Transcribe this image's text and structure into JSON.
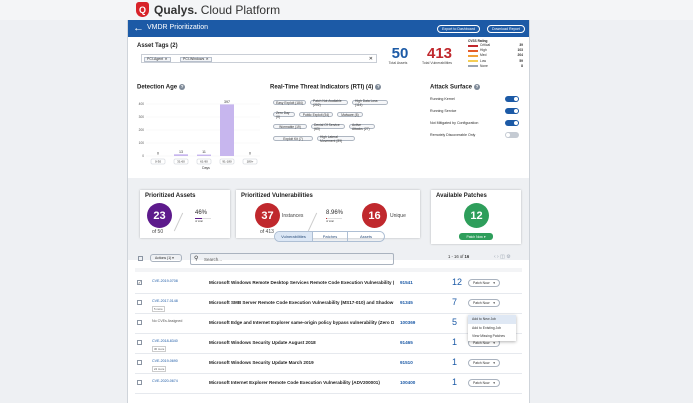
{
  "app": {
    "brand_bold": "Qualys.",
    "brand_rest": "Cloud Platform"
  },
  "header": {
    "title": "VMDR Prioritization",
    "export_label": "Export to Dashboard",
    "download_label": "Download Report"
  },
  "asset_tags": {
    "title": "Asset Tags (2)",
    "tags": [
      "PCI-Agent",
      "PCI-Windows"
    ]
  },
  "summary": {
    "total_assets": "50",
    "total_assets_label": "Total Assets",
    "total_vulns": "413",
    "total_vulns_label": "Total Vulnerabilities",
    "cvss_title": "CVSS Rating",
    "cvss": [
      {
        "label": "Critical",
        "value": "39",
        "color": "#c0282d"
      },
      {
        "label": "High",
        "value": "103",
        "color": "#e45b2b"
      },
      {
        "label": "Med",
        "value": "204",
        "color": "#f0a23a"
      },
      {
        "label": "Low",
        "value": "59",
        "color": "#f4cd55"
      },
      {
        "label": "None",
        "value": "8",
        "color": "#9aa4b1"
      }
    ]
  },
  "detection_age": {
    "title": "Detection Age",
    "xlabel": "Days"
  },
  "chart_data": {
    "type": "bar",
    "categories": [
      "0-30",
      "31-60",
      "61-90",
      "91-180",
      "180+"
    ],
    "values": [
      0,
      13,
      11,
      397,
      0
    ],
    "ylim": [
      0,
      400
    ],
    "yticks": [
      "0",
      "100",
      "200",
      "300",
      "400"
    ],
    "xlabel": "Days",
    "title": "Detection Age"
  },
  "rti": {
    "title": "Real-Time Threat Indicators (RTI) (4)",
    "pills": [
      "Easy Exploit (184)",
      "Patch Not Available (202)",
      "High Data Loss (114)",
      "Zero Day (0)",
      "Public Exploit (54)",
      "Malware (8)",
      "Wormable (19)",
      "Denial Of Service (63)",
      "Active Attacks (27)",
      "Exploit Kit (7)",
      "High Lateral Movement (89)",
      "Predicted High Risk (63)"
    ]
  },
  "attack_surface": {
    "title": "Attack Surface",
    "items": [
      {
        "label": "Running Kernel",
        "on": true
      },
      {
        "label": "Running Service",
        "on": true
      },
      {
        "label": "Not Mitigated by Configuration",
        "on": true
      },
      {
        "label": "Remotely Discoverable Only",
        "on": false
      }
    ]
  },
  "prioritized_assets": {
    "title": "Prioritized Assets",
    "value": "23",
    "of": "of 50",
    "percent": "46%",
    "percent_sub": "of total"
  },
  "prioritized_vulns": {
    "title": "Prioritized Vulnerabilities",
    "instances": "37",
    "instances_label": "Instances",
    "of": "of 413",
    "percent": "8.96%",
    "percent_sub": "of total",
    "unique": "16",
    "unique_label": "Unique"
  },
  "available_patches": {
    "title": "Available Patches",
    "value": "12",
    "button": "Patch Now"
  },
  "tabs": [
    "Vulnerabilities",
    "Patches",
    "Assets"
  ],
  "toolbar": {
    "actions": "Actions (1)",
    "search_placeholder": "Search...",
    "pagination": "1 - 16 of",
    "total": "16"
  },
  "rows": [
    {
      "cve": "CVE-2019-0708",
      "badge": "",
      "title": "Microsoft Windows Remote Desktop Services Remote Code Execution Vulnerability (BlueKeep)",
      "qid": "91541",
      "count": "12",
      "patch": "Patch Now",
      "checked": true
    },
    {
      "cve": "CVE-2017-0148",
      "badge": "5 more",
      "title": "Microsoft SMB Server Remote Code Execution Vulnerability (MS17-010) and Shadow Brokers",
      "qid": "91345",
      "count": "7",
      "patch": "Patch Now",
      "checked": false
    },
    {
      "cve": "No CVEs Assigned",
      "badge": "",
      "title": "Microsoft Edge and Internet Explorer same-origin policy bypass vulnerability (Zero Day)",
      "qid": "100369",
      "count": "5",
      "patch": "Patch Now",
      "checked": false
    },
    {
      "cve": "CVE-2018-8340",
      "badge": "30 more",
      "title": "Microsoft Windows Security Update August 2018",
      "qid": "91465",
      "count": "1",
      "patch": "Patch Now",
      "checked": false
    },
    {
      "cve": "CVE-2019-0690",
      "badge": "24 more",
      "title": "Microsoft Windows Security Update March 2019",
      "qid": "91510",
      "count": "1",
      "patch": "Patch Now",
      "checked": false
    },
    {
      "cve": "CVE-2020-0674",
      "badge": "",
      "title": "Microsoft Internet Explorer Remote Code Execution Vulnerability (ADV200001)",
      "qid": "100400",
      "count": "1",
      "patch": "Patch Now",
      "checked": false
    }
  ],
  "dropdown": [
    "Add to New Job",
    "Add to Existing Job",
    "View Missing Patches"
  ]
}
